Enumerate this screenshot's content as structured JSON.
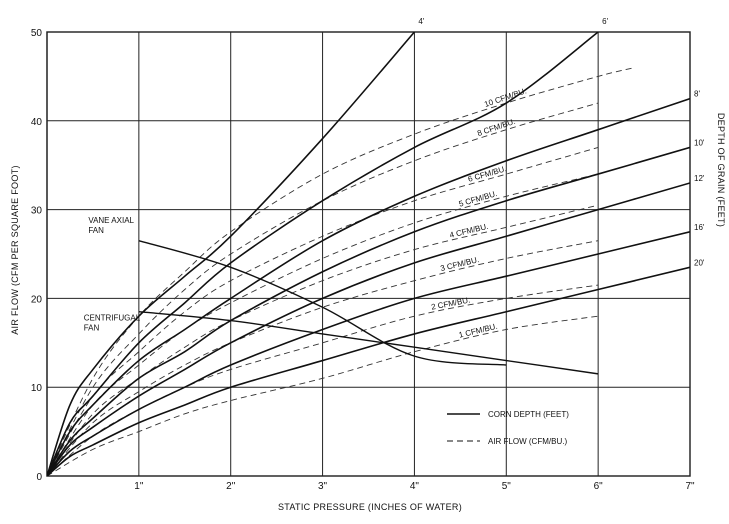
{
  "chart_data": {
    "type": "line",
    "xlabel": "STATIC PRESSURE (INCHES OF WATER)",
    "ylabel": "AIR FLOW (CFM PER SQUARE FOOT)",
    "y2label": "DEPTH OF GRAIN (FEET)",
    "xlim": [
      0,
      7
    ],
    "ylim": [
      0,
      50
    ],
    "grid": true,
    "x_tick_labels": [
      "1\"",
      "2\"",
      "3\"",
      "4\"",
      "5\"",
      "6\"",
      "7\""
    ],
    "x_ticks": [
      1,
      2,
      3,
      4,
      5,
      6,
      7
    ],
    "y_ticks": [
      0,
      10,
      20,
      30,
      40,
      50
    ],
    "depth_curves": [
      {
        "name": "4'",
        "points": [
          [
            0,
            0
          ],
          [
            0.25,
            8
          ],
          [
            0.5,
            12
          ],
          [
            1,
            18
          ],
          [
            1.5,
            22.5
          ],
          [
            2,
            27
          ],
          [
            3,
            38
          ],
          [
            4,
            50
          ]
        ]
      },
      {
        "name": "6'",
        "points": [
          [
            0,
            0
          ],
          [
            0.25,
            6
          ],
          [
            0.5,
            9
          ],
          [
            1,
            15
          ],
          [
            1.5,
            19.5
          ],
          [
            2,
            24
          ],
          [
            3,
            31
          ],
          [
            4,
            37
          ],
          [
            5,
            42
          ],
          [
            6,
            50
          ]
        ]
      },
      {
        "name": "8'",
        "points": [
          [
            0,
            0
          ],
          [
            0.25,
            5
          ],
          [
            0.5,
            8
          ],
          [
            1,
            13
          ],
          [
            1.5,
            16.5
          ],
          [
            2,
            20
          ],
          [
            3,
            26.5
          ],
          [
            4,
            31.5
          ],
          [
            5,
            35.5
          ],
          [
            6,
            39
          ],
          [
            7,
            42.5
          ]
        ]
      },
      {
        "name": "10'",
        "points": [
          [
            0,
            0
          ],
          [
            0.25,
            4
          ],
          [
            0.5,
            6.5
          ],
          [
            1,
            11
          ],
          [
            1.5,
            14
          ],
          [
            2,
            17.5
          ],
          [
            3,
            23
          ],
          [
            4,
            27.5
          ],
          [
            5,
            31
          ],
          [
            6,
            34
          ],
          [
            7,
            37
          ]
        ]
      },
      {
        "name": "12'",
        "points": [
          [
            0,
            0
          ],
          [
            0.25,
            3.5
          ],
          [
            0.5,
            5.5
          ],
          [
            1,
            9
          ],
          [
            1.5,
            12
          ],
          [
            2,
            15
          ],
          [
            3,
            20
          ],
          [
            4,
            24
          ],
          [
            5,
            27
          ],
          [
            6,
            30
          ],
          [
            7,
            33
          ]
        ]
      },
      {
        "name": "16'",
        "points": [
          [
            0,
            0
          ],
          [
            0.25,
            2.8
          ],
          [
            0.5,
            4.5
          ],
          [
            1,
            7.5
          ],
          [
            1.5,
            10
          ],
          [
            2,
            12.5
          ],
          [
            3,
            16.5
          ],
          [
            4,
            20
          ],
          [
            5,
            22.5
          ],
          [
            6,
            25
          ],
          [
            7,
            27.5
          ]
        ]
      },
      {
        "name": "20'",
        "points": [
          [
            0,
            0
          ],
          [
            0.25,
            2.2
          ],
          [
            0.5,
            3.5
          ],
          [
            1,
            6
          ],
          [
            1.5,
            8
          ],
          [
            2,
            10
          ],
          [
            3,
            13
          ],
          [
            4,
            16
          ],
          [
            5,
            18.5
          ],
          [
            6,
            21
          ],
          [
            7,
            23.5
          ]
        ]
      }
    ],
    "airflow_curves": [
      {
        "name": "10 CFM/BU.",
        "points": [
          [
            0,
            0
          ],
          [
            0.5,
            11
          ],
          [
            1,
            18
          ],
          [
            1.5,
            23
          ],
          [
            2,
            27.5
          ],
          [
            3,
            34
          ],
          [
            4,
            38.5
          ],
          [
            5,
            42
          ],
          [
            6,
            45
          ],
          [
            6.4,
            46
          ]
        ]
      },
      {
        "name": "8 CFM/BU.",
        "points": [
          [
            0,
            0
          ],
          [
            0.5,
            10
          ],
          [
            1,
            16
          ],
          [
            1.5,
            21
          ],
          [
            2,
            25
          ],
          [
            3,
            31
          ],
          [
            4,
            35.5
          ],
          [
            5,
            39
          ],
          [
            6,
            42
          ]
        ]
      },
      {
        "name": "6 CFM/BU.",
        "points": [
          [
            0,
            0
          ],
          [
            0.5,
            9
          ],
          [
            1,
            14
          ],
          [
            1.5,
            18.5
          ],
          [
            2,
            22
          ],
          [
            3,
            27
          ],
          [
            4,
            31
          ],
          [
            5,
            34
          ],
          [
            6,
            37
          ]
        ]
      },
      {
        "name": "5 CFM/BU.",
        "points": [
          [
            0,
            0
          ],
          [
            0.5,
            8
          ],
          [
            1,
            12.5
          ],
          [
            1.5,
            16.5
          ],
          [
            2,
            19.5
          ],
          [
            3,
            24.5
          ],
          [
            4,
            28.5
          ],
          [
            5,
            31.5
          ],
          [
            6,
            34
          ]
        ]
      },
      {
        "name": "4 CFM/BU.",
        "points": [
          [
            0,
            0
          ],
          [
            0.5,
            7
          ],
          [
            1,
            11
          ],
          [
            1.5,
            14.5
          ],
          [
            2,
            17.5
          ],
          [
            3,
            22
          ],
          [
            4,
            25.5
          ],
          [
            5,
            28
          ],
          [
            6,
            30.5
          ]
        ]
      },
      {
        "name": "3 CFM/BU.",
        "points": [
          [
            0,
            0
          ],
          [
            0.5,
            6
          ],
          [
            1,
            9.5
          ],
          [
            1.5,
            12.5
          ],
          [
            2,
            15
          ],
          [
            3,
            19
          ],
          [
            4,
            22
          ],
          [
            5,
            24.5
          ],
          [
            6,
            26.5
          ]
        ]
      },
      {
        "name": "2 CFM/BU.",
        "points": [
          [
            0,
            0
          ],
          [
            0.5,
            4.5
          ],
          [
            1,
            7.5
          ],
          [
            1.5,
            10
          ],
          [
            2,
            12
          ],
          [
            3,
            15
          ],
          [
            4,
            18
          ],
          [
            5,
            20
          ],
          [
            6,
            21.5
          ]
        ]
      },
      {
        "name": "1 CFM/BU.",
        "points": [
          [
            0,
            0
          ],
          [
            0.5,
            3
          ],
          [
            1,
            5
          ],
          [
            1.5,
            7
          ],
          [
            2,
            8.5
          ],
          [
            3,
            11
          ],
          [
            4,
            14
          ],
          [
            5,
            16.5
          ],
          [
            6,
            18
          ]
        ]
      }
    ],
    "fan_curves": [
      {
        "name": "VANE AXIAL FAN",
        "points": [
          [
            1,
            26.5
          ],
          [
            2,
            23.5
          ],
          [
            3,
            19
          ],
          [
            4,
            13.5
          ],
          [
            5,
            12.5
          ]
        ]
      },
      {
        "name": "CENTRIFUGAL FAN",
        "points": [
          [
            1,
            18.5
          ],
          [
            2,
            17.5
          ],
          [
            3,
            16
          ],
          [
            4,
            14.5
          ],
          [
            5,
            13
          ],
          [
            6,
            11.5
          ]
        ]
      }
    ],
    "legend": {
      "placement": "bottom-right",
      "items": [
        {
          "label": "CORN DEPTH (FEET)",
          "style": "solid"
        },
        {
          "label": "AIR FLOW (CFM/BU.)",
          "style": "dashed"
        }
      ]
    }
  }
}
